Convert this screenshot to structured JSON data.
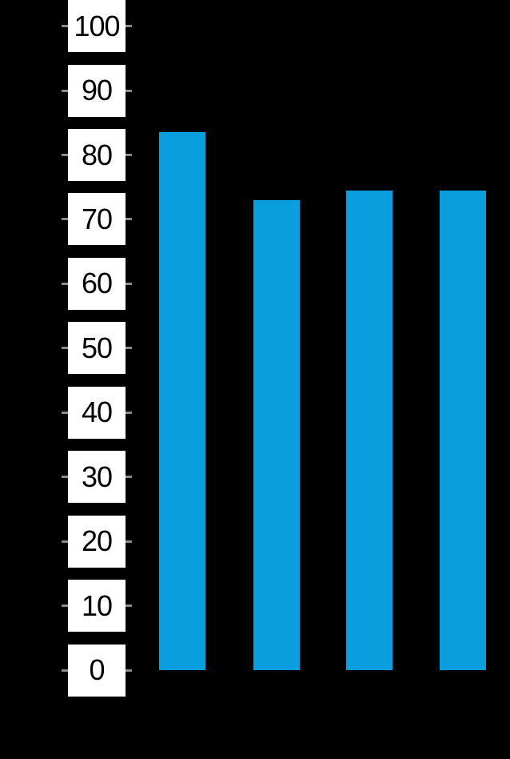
{
  "chart_data": {
    "type": "bar",
    "title": "",
    "categories": [
      "",
      "",
      "",
      ""
    ],
    "values": [
      83.5,
      73,
      74.5,
      74.5
    ],
    "xlabel": "",
    "ylabel": "",
    "ylim": [
      0,
      100
    ],
    "y_ticks": [
      100,
      90,
      80,
      70,
      60,
      50,
      40,
      30,
      20,
      10,
      0
    ],
    "grid": false,
    "legend": "none",
    "colors": {
      "background": "#000000",
      "bar_fill": "#0a9edf",
      "tick_label_bg": "#ffffff",
      "tick_label_text": "#000000",
      "tick_mark": "#8a8a8a"
    }
  }
}
